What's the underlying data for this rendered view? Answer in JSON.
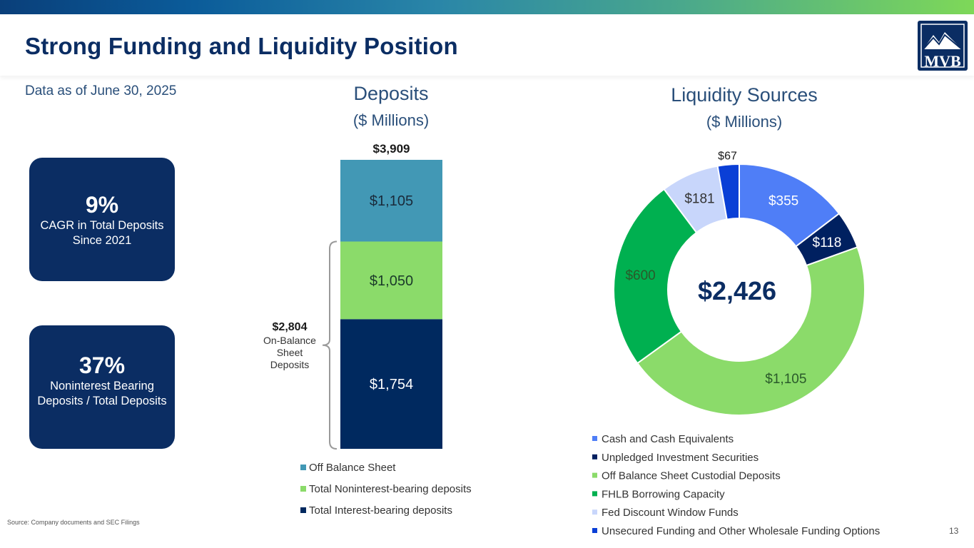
{
  "header": {
    "title": "Strong Funding and Liquidity Position",
    "logo_text": "MVB",
    "subtitle": "Data as of June 30, 2025"
  },
  "kpis": [
    {
      "value": "9%",
      "desc": "CAGR in Total Deposits Since 2021"
    },
    {
      "value": "37%",
      "desc": "Noninterest Bearing Deposits / Total Deposits"
    }
  ],
  "footer": {
    "source": "Source: Company documents and SEC Filings",
    "page_number": "13"
  },
  "colors": {
    "navy": "#0b2d63",
    "off_balance": "#4298b5",
    "noninterest": "#8bdb6a",
    "interest": "#00295f",
    "cash": "#4f7ef7",
    "unpledged": "#002060",
    "custodial": "#8bdb6a",
    "fhlb": "#00b050",
    "fed": "#c8d6fb",
    "unsecured": "#0a3fd6"
  },
  "chart_data": [
    {
      "type": "bar",
      "stacked": true,
      "title": "Deposits",
      "subtitle": "($ Millions)",
      "total_label": "$3,909",
      "total": 3909,
      "series": [
        {
          "name": "Total Interest-bearing deposits",
          "value": 1754,
          "label": "$1,754"
        },
        {
          "name": "Total Noninterest-bearing deposits",
          "value": 1050,
          "label": "$1,050"
        },
        {
          "name": "Off Balance Sheet",
          "value": 1105,
          "label": "$1,105"
        }
      ],
      "legend": [
        "Off Balance Sheet",
        "Total Noninterest-bearing deposits",
        "Total Interest-bearing deposits"
      ],
      "bracket_annotation": {
        "value": "$2,804",
        "lines": [
          "On-Balance",
          "Sheet",
          "Deposits"
        ]
      }
    },
    {
      "type": "pie",
      "donut": true,
      "title": "Liquidity Sources",
      "subtitle": "($ Millions)",
      "center_label": "$2,426",
      "slices": [
        {
          "name": "Cash and Cash Equivalents",
          "value": 355,
          "label": "$355"
        },
        {
          "name": "Unpledged Investment Securities",
          "value": 118,
          "label": "$118"
        },
        {
          "name": "Off Balance Sheet Custodial Deposits",
          "value": 1105,
          "label": "$1,105"
        },
        {
          "name": "FHLB Borrowing Capacity",
          "value": 600,
          "label": "$600"
        },
        {
          "name": "Fed Discount Window Funds",
          "value": 181,
          "label": "$181"
        },
        {
          "name": "Unsecured Funding and Other Wholesale Funding Options",
          "value": 67,
          "label": "$67"
        }
      ]
    }
  ]
}
